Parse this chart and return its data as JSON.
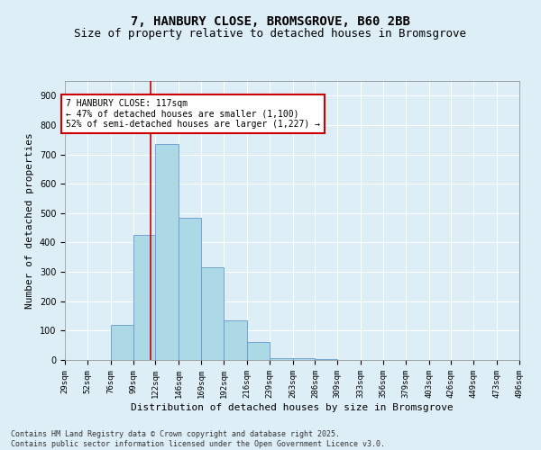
{
  "title_line1": "7, HANBURY CLOSE, BROMSGROVE, B60 2BB",
  "title_line2": "Size of property relative to detached houses in Bromsgrove",
  "xlabel": "Distribution of detached houses by size in Bromsgrove",
  "ylabel": "Number of detached properties",
  "bin_edges": [
    29,
    52,
    76,
    99,
    122,
    146,
    169,
    192,
    216,
    239,
    263,
    286,
    309,
    333,
    356,
    379,
    403,
    426,
    449,
    473,
    496
  ],
  "bar_heights": [
    0,
    0,
    120,
    425,
    735,
    485,
    315,
    135,
    60,
    5,
    5,
    2,
    1,
    1,
    0,
    0,
    0,
    0,
    0,
    0
  ],
  "bar_color": "#add8e6",
  "bar_edge_color": "#6699cc",
  "property_size": 117,
  "red_line_color": "#cc0000",
  "ylim": [
    0,
    950
  ],
  "yticks": [
    0,
    100,
    200,
    300,
    400,
    500,
    600,
    700,
    800,
    900
  ],
  "annotation_text": "7 HANBURY CLOSE: 117sqm\n← 47% of detached houses are smaller (1,100)\n52% of semi-detached houses are larger (1,227) →",
  "annotation_box_color": "#ffffff",
  "annotation_box_edge_color": "#cc0000",
  "footer_line1": "Contains HM Land Registry data © Crown copyright and database right 2025.",
  "footer_line2": "Contains public sector information licensed under the Open Government Licence v3.0.",
  "background_color": "#ddeef6",
  "plot_background_color": "#ddeef6",
  "grid_color": "#ffffff",
  "title_fontsize": 10,
  "subtitle_fontsize": 9,
  "tick_fontsize": 6.5,
  "label_fontsize": 8,
  "annotation_fontsize": 7,
  "footer_fontsize": 6
}
